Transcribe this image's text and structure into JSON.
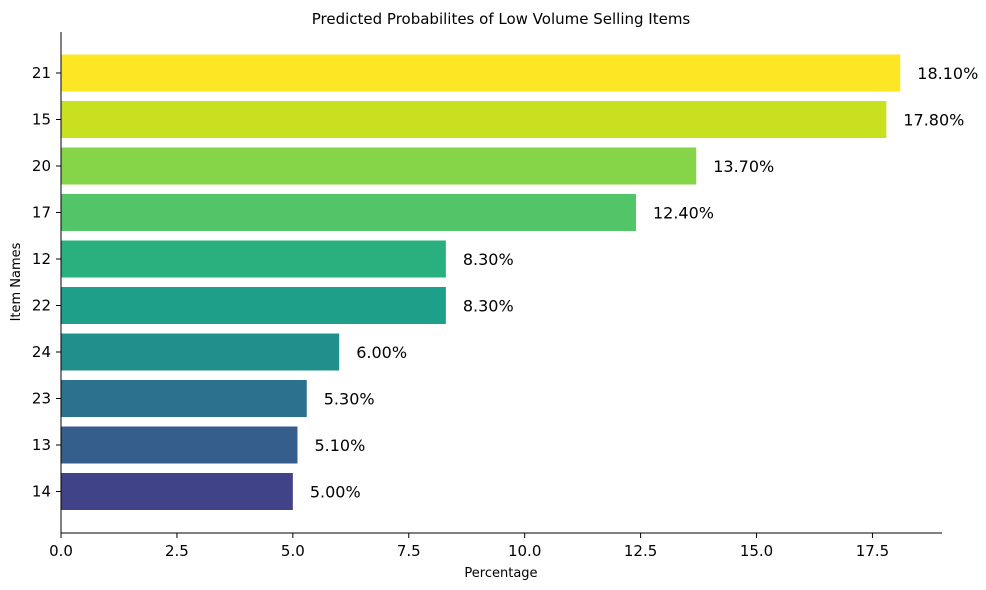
{
  "chart_data": {
    "type": "bar",
    "orientation": "horizontal",
    "title": "Predicted Probabilites of Low Volume Selling Items",
    "xlabel": "Percentage",
    "ylabel": "Item Names",
    "xlim": [
      0,
      19
    ],
    "xticks": [
      0.0,
      2.5,
      5.0,
      7.5,
      10.0,
      12.5,
      15.0,
      17.5
    ],
    "xtick_labels": [
      "0.0",
      "2.5",
      "5.0",
      "7.5",
      "10.0",
      "12.5",
      "15.0",
      "17.5"
    ],
    "grid": false,
    "categories": [
      "21",
      "15",
      "20",
      "17",
      "12",
      "22",
      "24",
      "23",
      "13",
      "14"
    ],
    "values": [
      18.1,
      17.8,
      13.7,
      12.4,
      8.3,
      8.3,
      6.0,
      5.3,
      5.1,
      5.0
    ],
    "value_labels": [
      "18.10%",
      "17.80%",
      "13.70%",
      "12.40%",
      "8.30%",
      "8.30%",
      "6.00%",
      "5.30%",
      "5.10%",
      "5.00%"
    ],
    "colors": [
      "#fde725",
      "#c8e020",
      "#86d549",
      "#52c569",
      "#2ab07f",
      "#1e9f8a",
      "#21908d",
      "#2c728e",
      "#355e8d",
      "#404387"
    ]
  }
}
